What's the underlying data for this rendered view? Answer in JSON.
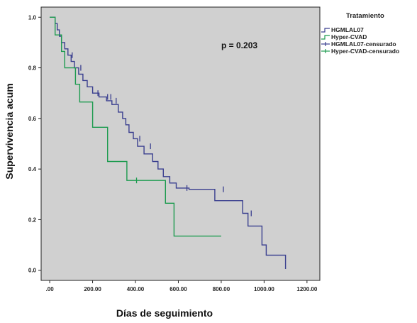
{
  "chart_data": {
    "type": "line",
    "step": true,
    "xlabel": "Días de seguimiento",
    "ylabel": "Supervivencia acum",
    "xlim": [
      -40,
      1260
    ],
    "ylim": [
      -0.04,
      1.04
    ],
    "x_ticks": [
      0,
      200,
      400,
      600,
      800,
      1000,
      1200
    ],
    "x_tick_labels": [
      ".00",
      "200.00",
      "400.00",
      "600.00",
      "800.00",
      "1000.00",
      "1200.00"
    ],
    "y_ticks": [
      0.0,
      0.2,
      0.4,
      0.6,
      0.8,
      1.0
    ],
    "y_tick_labels": [
      "0.0",
      "0.2",
      "0.4",
      "0.6",
      "0.8",
      "1.0"
    ],
    "grid": false,
    "annotation": "p = 0.203",
    "legend": {
      "title": "Tratamiento",
      "position": "top-right",
      "entries": [
        "HGMLAL07",
        "Hyper-CVAD",
        "HGMLAL07-censurado",
        "Hyper-CVAD-censurado"
      ]
    },
    "series": [
      {
        "name": "HGMLAL07",
        "color": "#3a3f8f",
        "points": [
          [
            0,
            1.0
          ],
          [
            25,
            1.0
          ],
          [
            25,
            0.975
          ],
          [
            35,
            0.975
          ],
          [
            35,
            0.95
          ],
          [
            45,
            0.95
          ],
          [
            45,
            0.925
          ],
          [
            55,
            0.925
          ],
          [
            55,
            0.9
          ],
          [
            70,
            0.9
          ],
          [
            70,
            0.875
          ],
          [
            85,
            0.875
          ],
          [
            85,
            0.85
          ],
          [
            100,
            0.85
          ],
          [
            100,
            0.825
          ],
          [
            115,
            0.825
          ],
          [
            115,
            0.8
          ],
          [
            135,
            0.8
          ],
          [
            135,
            0.775
          ],
          [
            155,
            0.775
          ],
          [
            155,
            0.75
          ],
          [
            175,
            0.75
          ],
          [
            175,
            0.725
          ],
          [
            200,
            0.725
          ],
          [
            200,
            0.7
          ],
          [
            230,
            0.7
          ],
          [
            230,
            0.685
          ],
          [
            265,
            0.685
          ],
          [
            265,
            0.67
          ],
          [
            290,
            0.67
          ],
          [
            290,
            0.655
          ],
          [
            320,
            0.655
          ],
          [
            320,
            0.625
          ],
          [
            340,
            0.625
          ],
          [
            340,
            0.6
          ],
          [
            355,
            0.6
          ],
          [
            355,
            0.575
          ],
          [
            370,
            0.575
          ],
          [
            370,
            0.545
          ],
          [
            390,
            0.545
          ],
          [
            390,
            0.52
          ],
          [
            410,
            0.52
          ],
          [
            410,
            0.49
          ],
          [
            440,
            0.49
          ],
          [
            440,
            0.46
          ],
          [
            480,
            0.46
          ],
          [
            480,
            0.43
          ],
          [
            505,
            0.43
          ],
          [
            505,
            0.4
          ],
          [
            530,
            0.4
          ],
          [
            530,
            0.37
          ],
          [
            560,
            0.37
          ],
          [
            560,
            0.345
          ],
          [
            590,
            0.345
          ],
          [
            590,
            0.325
          ],
          [
            650,
            0.325
          ],
          [
            650,
            0.32
          ],
          [
            770,
            0.32
          ],
          [
            770,
            0.275
          ],
          [
            900,
            0.275
          ],
          [
            900,
            0.225
          ],
          [
            925,
            0.225
          ],
          [
            925,
            0.175
          ],
          [
            990,
            0.175
          ],
          [
            990,
            0.1
          ],
          [
            1010,
            0.1
          ],
          [
            1010,
            0.06
          ],
          [
            1100,
            0.06
          ],
          [
            1100,
            0.005
          ]
        ],
        "censored": [
          [
            105,
            0.85
          ],
          [
            145,
            0.8
          ],
          [
            225,
            0.7
          ],
          [
            270,
            0.685
          ],
          [
            285,
            0.685
          ],
          [
            310,
            0.67
          ],
          [
            420,
            0.52
          ],
          [
            470,
            0.49
          ],
          [
            640,
            0.325
          ],
          [
            810,
            0.32
          ],
          [
            940,
            0.225
          ]
        ]
      },
      {
        "name": "Hyper-CVAD",
        "color": "#1d9b4f",
        "points": [
          [
            0,
            1.0
          ],
          [
            25,
            1.0
          ],
          [
            25,
            0.93
          ],
          [
            55,
            0.93
          ],
          [
            55,
            0.865
          ],
          [
            70,
            0.865
          ],
          [
            70,
            0.8
          ],
          [
            120,
            0.8
          ],
          [
            120,
            0.735
          ],
          [
            140,
            0.735
          ],
          [
            140,
            0.665
          ],
          [
            200,
            0.665
          ],
          [
            200,
            0.565
          ],
          [
            270,
            0.565
          ],
          [
            270,
            0.43
          ],
          [
            290,
            0.43
          ],
          [
            290,
            0.43
          ],
          [
            360,
            0.43
          ],
          [
            360,
            0.355
          ],
          [
            540,
            0.355
          ],
          [
            540,
            0.265
          ],
          [
            580,
            0.265
          ],
          [
            580,
            0.135
          ],
          [
            800,
            0.135
          ]
        ],
        "censored": [
          [
            405,
            0.355
          ]
        ]
      }
    ]
  }
}
